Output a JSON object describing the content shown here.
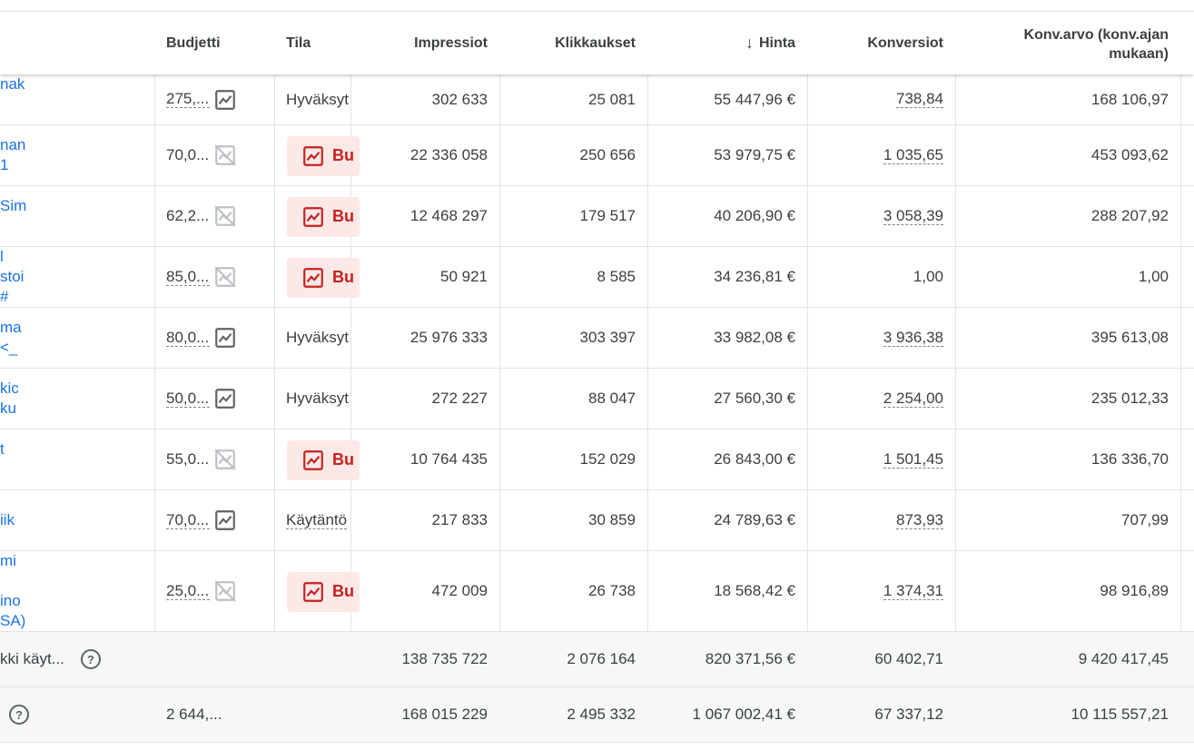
{
  "header": {
    "budget": "Budjetti",
    "status": "Tila",
    "impressions": "Impressiot",
    "clicks": "Klikkaukset",
    "cost": "Hinta",
    "conversions": "Konversiot",
    "conv_value_line1": "Konv.arvo (konv.ajan",
    "conv_value_line2": "mukaan)"
  },
  "rows": [
    {
      "name": [
        "nak"
      ],
      "budget": "275,...",
      "chart": "on",
      "status": "Hyväksyt",
      "impr": "302 633",
      "clicks": "25 081",
      "cost": "55 447,96 €",
      "conv": "738,84",
      "value": "168 106,97"
    },
    {
      "name": [
        "nan",
        "1"
      ],
      "budget": "70,0...",
      "chart": "off",
      "status": "Bu",
      "impr": "22 336 058",
      "clicks": "250 656",
      "cost": "53 979,75 €",
      "conv": "1 035,65",
      "value": "453 093,62"
    },
    {
      "name": [
        "Sim",
        ""
      ],
      "budget": "62,2...",
      "chart": "off",
      "status": "Bu",
      "impr": "12 468 297",
      "clicks": "179 517",
      "cost": "40 206,90 €",
      "conv": "3 058,39",
      "value": "288 207,92"
    },
    {
      "name": [
        "l",
        "stoi",
        "#"
      ],
      "budget": "85,0...",
      "chart": "off",
      "status": "Bu",
      "impr": "50 921",
      "clicks": "8 585",
      "cost": "34 236,81 €",
      "conv": "1,00",
      "value": "1,00"
    },
    {
      "name": [
        "ma",
        "<_"
      ],
      "budget": "80,0...",
      "chart": "on",
      "status": "Hyväksyt",
      "impr": "25 976 333",
      "clicks": "303 397",
      "cost": "33 982,08 €",
      "conv": "3 936,38",
      "value": "395 613,08"
    },
    {
      "name": [
        "kic",
        "ku"
      ],
      "budget": "50,0...",
      "chart": "on",
      "status": "Hyväksyt",
      "impr": "272 227",
      "clicks": "88 047",
      "cost": "27 560,30 €",
      "conv": "2 254,00",
      "value": "235 012,33"
    },
    {
      "name": [
        "t",
        ""
      ],
      "budget": "55,0...",
      "chart": "off",
      "status": "Bu",
      "impr": "10 764 435",
      "clicks": "152 029",
      "cost": "26 843,00 €",
      "conv": "1 501,45",
      "value": "136 336,70"
    },
    {
      "name": [
        "iik"
      ],
      "budget": "70,0...",
      "chart": "on",
      "status": "Käytäntö",
      "impr": "217 833",
      "clicks": "30 859",
      "cost": "24 789,63 €",
      "conv": "873,93",
      "value": "707,99"
    },
    {
      "name": [
        "mi",
        "",
        "ino",
        "SA)"
      ],
      "budget": "25,0...",
      "chart": "off",
      "status": "Bu",
      "impr": "472 009",
      "clicks": "26 738",
      "cost": "18 568,42 €",
      "conv": "1 374,31",
      "value": "98 916,89"
    }
  ],
  "totals": [
    {
      "label": "kki käyt...",
      "budget": "",
      "impr": "138 735 722",
      "clicks": "2 076 164",
      "cost": "820 371,56 €",
      "conv": "60 402,71",
      "value": "9 420 417,45"
    },
    {
      "label": "",
      "budget": "2 644,...",
      "impr": "168 015 229",
      "clicks": "2 495 332",
      "cost": "1 067 002,41 €",
      "conv": "67 337,12",
      "value": "10 115 557,21"
    }
  ],
  "icons": {
    "sort": "arrow-down-icon",
    "chart_on": "chart-icon",
    "chart_off": "chart-off-icon",
    "help": "help-icon",
    "status_alert": "chart-alert-icon"
  },
  "colors": {
    "link": "#1a73e8",
    "alert_bg": "#fce8e6",
    "alert_fg": "#c5221f",
    "total_bg": "#f6f8f8"
  }
}
